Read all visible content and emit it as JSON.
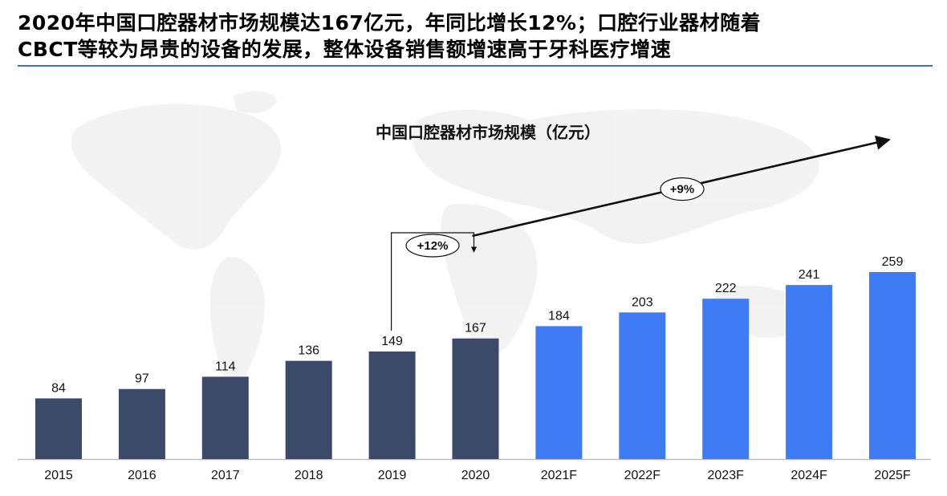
{
  "headline": {
    "line1": "2020年中国口腔器材市场规模达167亿元，年同比增长12%；口腔行业器材随着",
    "line2": "CBCT等较为昂贵的设备的发展，整体设备销售额增速高于牙科医疗增速"
  },
  "colors": {
    "historical": "#3b4a69",
    "forecast": "#3f7bf5",
    "rule": "#3a6fd8"
  },
  "chart_data": {
    "type": "bar",
    "title": "中国口腔器材市场规模（亿元）",
    "categories": [
      "2015",
      "2016",
      "2017",
      "2018",
      "2019",
      "2020",
      "2021F",
      "2022F",
      "2023F",
      "2024F",
      "2025F"
    ],
    "values": [
      84,
      97,
      114,
      136,
      149,
      167,
      184,
      203,
      222,
      241,
      259
    ],
    "forecast": [
      false,
      false,
      false,
      false,
      false,
      false,
      true,
      true,
      true,
      true,
      true
    ],
    "ylim": [
      0,
      300
    ],
    "grid": false,
    "annotations": [
      {
        "label": "+12%",
        "from": "2019",
        "to": "2020"
      },
      {
        "label": "+9%",
        "from": "2020",
        "to": "2025F"
      }
    ]
  }
}
